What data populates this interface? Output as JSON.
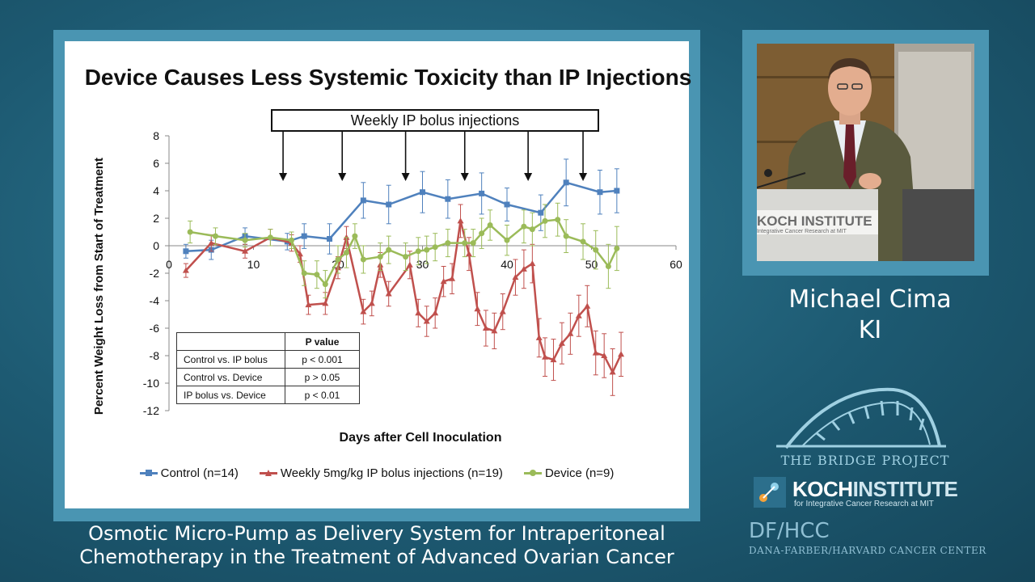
{
  "slide": {
    "title": "Device Causes Less Systemic Toxicity than IP Injections",
    "banner": "Weekly IP bolus injections"
  },
  "table": {
    "header": [
      "",
      "P value"
    ],
    "rows": [
      [
        "Control vs. IP bolus",
        "p < 0.001"
      ],
      [
        "Control vs. Device",
        "p > 0.05"
      ],
      [
        "IP bolus vs. Device",
        "p < 0.01"
      ]
    ]
  },
  "caption": {
    "line1": "Osmotic Micro-Pump as Delivery System for Intraperitoneal",
    "line2": "Chemotherapy in the Treatment of Advanced Ovarian Cancer"
  },
  "speaker": {
    "name": "Michael Cima",
    "affiliation": "KI",
    "podium_brand": "KOCH INSTITUTE",
    "podium_sub": "Integrative Cancer Research at MIT"
  },
  "logos": {
    "bridge_project": "THE BRIDGE PROJECT",
    "koch_bold": "KOCH",
    "koch_light": "INSTITUTE",
    "koch_sub": "for Integrative Cancer Research at MIT",
    "dfhcc": "DF/HCC",
    "dfhcc_sub": "DANA-FARBER/HARVARD CANCER CENTER"
  },
  "chart_data": {
    "type": "line",
    "title": "Device Causes Less Systemic Toxicity than IP Injections",
    "xlabel": "Days after Cell Inoculation",
    "ylabel": "Percent Weight Loss from Start of Treatment",
    "xlim": [
      0,
      60
    ],
    "ylim": [
      -12,
      8
    ],
    "x_ticks": [
      0,
      10,
      20,
      30,
      40,
      50,
      60
    ],
    "y_ticks": [
      8,
      6,
      4,
      2,
      0,
      -2,
      -4,
      -6,
      -8,
      -10,
      -12
    ],
    "grid": false,
    "legend_position": "bottom",
    "injection_days": [
      13.5,
      20.5,
      28,
      35,
      42.5,
      49
    ],
    "series": [
      {
        "name": "Control (n=14)",
        "color": "#4f81bd",
        "marker": "square",
        "x": [
          2,
          5,
          9,
          14,
          16,
          19,
          23,
          26,
          30,
          33,
          37,
          40,
          44,
          47,
          51,
          53
        ],
        "y": [
          -0.4,
          -0.3,
          0.7,
          0.3,
          0.7,
          0.5,
          3.3,
          3.0,
          3.9,
          3.4,
          3.8,
          3.0,
          2.4,
          4.6,
          3.9,
          4.0
        ],
        "err": [
          0.5,
          0.7,
          0.6,
          0.6,
          0.9,
          1.1,
          1.3,
          1.4,
          1.5,
          1.4,
          1.5,
          1.2,
          1.3,
          1.7,
          1.6,
          1.6
        ]
      },
      {
        "name": "Weekly 5mg/kg IP bolus injections (n=19)",
        "color": "#c0504d",
        "marker": "triangle",
        "x": [
          2,
          5,
          9,
          12,
          14.5,
          15.5,
          16.5,
          18.5,
          20,
          21,
          23,
          24,
          25,
          26,
          28.5,
          29.5,
          30.5,
          31.5,
          32.5,
          33.5,
          34.5,
          35.5,
          36.5,
          37.5,
          38.5,
          39.5,
          41,
          42,
          43,
          43.8,
          44.5,
          45.5,
          46.5,
          47.5,
          48.5,
          49.5,
          50.5,
          51.5,
          52.5,
          53.5
        ],
        "y": [
          -1.8,
          0.2,
          -0.4,
          0.6,
          0.2,
          -0.6,
          -4.3,
          -4.2,
          -1.6,
          0.6,
          -4.8,
          -4.2,
          -1.4,
          -3.5,
          -1.4,
          -4.9,
          -5.5,
          -4.9,
          -2.6,
          -2.4,
          1.8,
          -0.6,
          -4.6,
          -6.0,
          -6.2,
          -4.8,
          -2.3,
          -1.7,
          -1.3,
          -6.7,
          -8.1,
          -8.3,
          -7.1,
          -6.4,
          -5.1,
          -4.4,
          -7.8,
          -8.0,
          -9.2,
          -7.9
        ],
        "err": [
          0.5,
          0.6,
          0.5,
          0.6,
          0.6,
          0.6,
          0.7,
          0.8,
          0.8,
          0.8,
          0.9,
          0.9,
          0.9,
          0.9,
          1.0,
          1.0,
          1.1,
          1.1,
          1.1,
          1.1,
          1.2,
          1.2,
          1.2,
          1.3,
          1.3,
          1.3,
          1.3,
          1.4,
          1.4,
          1.4,
          1.4,
          1.5,
          1.5,
          1.5,
          1.5,
          1.5,
          1.6,
          1.6,
          1.7,
          1.6
        ]
      },
      {
        "name": "Device (n=9)",
        "color": "#9bbb59",
        "marker": "circle",
        "x": [
          2.5,
          5.5,
          9,
          12,
          14.5,
          16,
          17.5,
          18.5,
          20,
          21,
          22,
          23,
          25,
          26,
          28,
          29.5,
          30.5,
          31.5,
          33,
          35,
          36,
          37,
          38,
          40,
          42,
          43,
          44.5,
          46,
          47,
          49,
          50.5,
          52,
          53
        ],
        "y": [
          1.0,
          0.7,
          0.4,
          0.6,
          0.4,
          -2.0,
          -2.1,
          -2.8,
          -1.0,
          -0.5,
          0.7,
          -1.0,
          -0.8,
          -0.3,
          -0.8,
          -0.4,
          -0.3,
          -0.1,
          0.2,
          0.2,
          0.2,
          0.9,
          1.5,
          0.4,
          1.4,
          1.2,
          1.8,
          1.9,
          0.7,
          0.3,
          -0.3,
          -1.5,
          -0.2
        ],
        "err": [
          0.8,
          0.6,
          0.5,
          0.6,
          0.6,
          0.9,
          1.0,
          1.0,
          1.0,
          1.1,
          0.9,
          1.0,
          1.0,
          1.0,
          1.0,
          1.0,
          1.0,
          1.0,
          1.0,
          1.0,
          1.0,
          1.1,
          1.1,
          1.1,
          1.2,
          1.2,
          1.2,
          1.2,
          1.2,
          1.3,
          1.4,
          1.6,
          1.6
        ]
      }
    ]
  }
}
